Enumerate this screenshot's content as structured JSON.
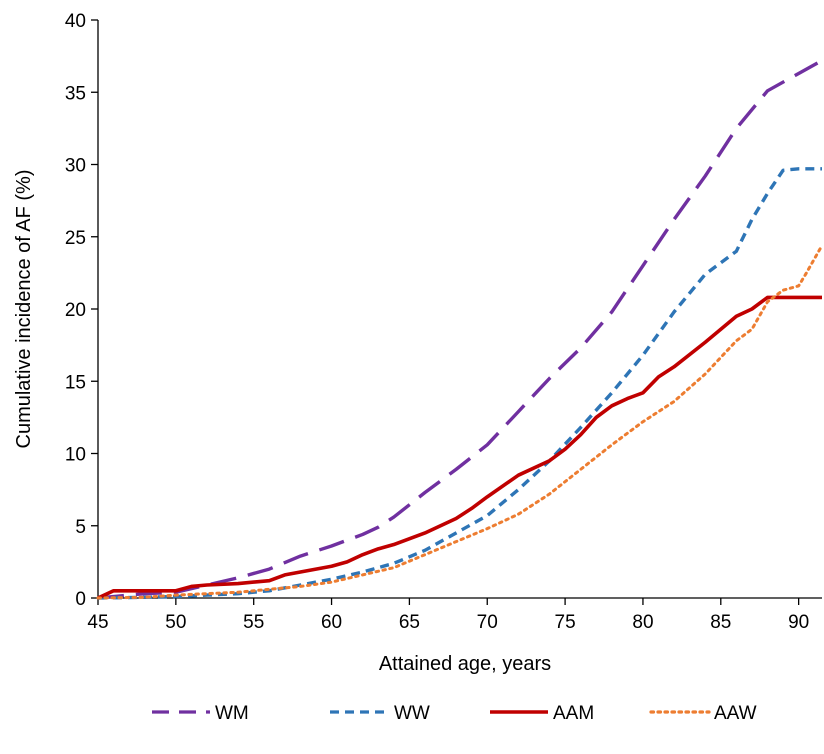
{
  "chart_data": {
    "type": "line",
    "title": "",
    "xlabel": "Attained age, years",
    "ylabel": "Cumulative incidence of AF (%)",
    "xlim": [
      45,
      91.5
    ],
    "ylim": [
      0,
      40
    ],
    "xticks": [
      45,
      50,
      55,
      60,
      65,
      70,
      75,
      80,
      85,
      90
    ],
    "yticks": [
      0,
      5,
      10,
      15,
      20,
      25,
      30,
      35,
      40
    ],
    "grid": false,
    "legend_position": "bottom",
    "series": [
      {
        "name": "WM",
        "color": "#7030A0",
        "dash": "long-dash",
        "points": [
          [
            45,
            0
          ],
          [
            46,
            0.1
          ],
          [
            48,
            0.3
          ],
          [
            50,
            0.4
          ],
          [
            52,
            0.9
          ],
          [
            54,
            1.4
          ],
          [
            56,
            2.0
          ],
          [
            58,
            2.9
          ],
          [
            60,
            3.6
          ],
          [
            62,
            4.4
          ],
          [
            63,
            4.9
          ],
          [
            64,
            5.6
          ],
          [
            66,
            7.3
          ],
          [
            68,
            8.9
          ],
          [
            70,
            10.6
          ],
          [
            72,
            12.9
          ],
          [
            74,
            15.2
          ],
          [
            76,
            17.3
          ],
          [
            78,
            19.8
          ],
          [
            80,
            23.0
          ],
          [
            82,
            26.2
          ],
          [
            84,
            29.2
          ],
          [
            86,
            32.5
          ],
          [
            88,
            35.1
          ],
          [
            90,
            36.3
          ],
          [
            91.5,
            37.2
          ]
        ]
      },
      {
        "name": "WW",
        "color": "#2E75B6",
        "dash": "short-dash",
        "points": [
          [
            45,
            0
          ],
          [
            48,
            0.05
          ],
          [
            50,
            0.1
          ],
          [
            52,
            0.2
          ],
          [
            54,
            0.3
          ],
          [
            56,
            0.5
          ],
          [
            58,
            0.9
          ],
          [
            60,
            1.3
          ],
          [
            62,
            1.8
          ],
          [
            64,
            2.4
          ],
          [
            66,
            3.3
          ],
          [
            68,
            4.5
          ],
          [
            70,
            5.7
          ],
          [
            72,
            7.5
          ],
          [
            74,
            9.5
          ],
          [
            76,
            11.8
          ],
          [
            78,
            14.2
          ],
          [
            80,
            16.8
          ],
          [
            82,
            19.8
          ],
          [
            84,
            22.4
          ],
          [
            86,
            24.0
          ],
          [
            87,
            26.2
          ],
          [
            88,
            28.0
          ],
          [
            89,
            29.6
          ],
          [
            90,
            29.7
          ],
          [
            91.5,
            29.7
          ]
        ]
      },
      {
        "name": "AAM",
        "color": "#C00000",
        "dash": "solid",
        "points": [
          [
            45,
            0
          ],
          [
            46,
            0.5
          ],
          [
            48,
            0.5
          ],
          [
            50,
            0.5
          ],
          [
            51,
            0.8
          ],
          [
            52,
            0.9
          ],
          [
            54,
            1.0
          ],
          [
            56,
            1.2
          ],
          [
            57,
            1.6
          ],
          [
            58,
            1.8
          ],
          [
            60,
            2.2
          ],
          [
            61,
            2.5
          ],
          [
            62,
            3.0
          ],
          [
            63,
            3.4
          ],
          [
            64,
            3.7
          ],
          [
            66,
            4.5
          ],
          [
            68,
            5.5
          ],
          [
            69,
            6.2
          ],
          [
            70,
            7.0
          ],
          [
            72,
            8.5
          ],
          [
            74,
            9.5
          ],
          [
            75,
            10.3
          ],
          [
            76,
            11.3
          ],
          [
            77,
            12.5
          ],
          [
            78,
            13.3
          ],
          [
            79,
            13.8
          ],
          [
            80,
            14.2
          ],
          [
            81,
            15.3
          ],
          [
            82,
            16.0
          ],
          [
            84,
            17.7
          ],
          [
            86,
            19.5
          ],
          [
            87,
            20.0
          ],
          [
            88,
            20.8
          ],
          [
            89,
            20.8
          ],
          [
            90,
            20.8
          ],
          [
            91.5,
            20.8
          ]
        ]
      },
      {
        "name": "AAW",
        "color": "#ED7D31",
        "dash": "dotted",
        "points": [
          [
            45,
            0
          ],
          [
            48,
            0.05
          ],
          [
            50,
            0.2
          ],
          [
            52,
            0.3
          ],
          [
            54,
            0.4
          ],
          [
            56,
            0.6
          ],
          [
            58,
            0.8
          ],
          [
            60,
            1.1
          ],
          [
            62,
            1.6
          ],
          [
            64,
            2.1
          ],
          [
            66,
            3.0
          ],
          [
            68,
            3.9
          ],
          [
            70,
            4.8
          ],
          [
            72,
            5.8
          ],
          [
            74,
            7.2
          ],
          [
            76,
            8.9
          ],
          [
            78,
            10.6
          ],
          [
            80,
            12.2
          ],
          [
            82,
            13.6
          ],
          [
            84,
            15.5
          ],
          [
            86,
            17.8
          ],
          [
            87,
            18.6
          ],
          [
            88,
            20.5
          ],
          [
            89,
            21.3
          ],
          [
            90,
            21.6
          ],
          [
            90.5,
            22.5
          ],
          [
            91.5,
            24.4
          ]
        ]
      }
    ]
  }
}
